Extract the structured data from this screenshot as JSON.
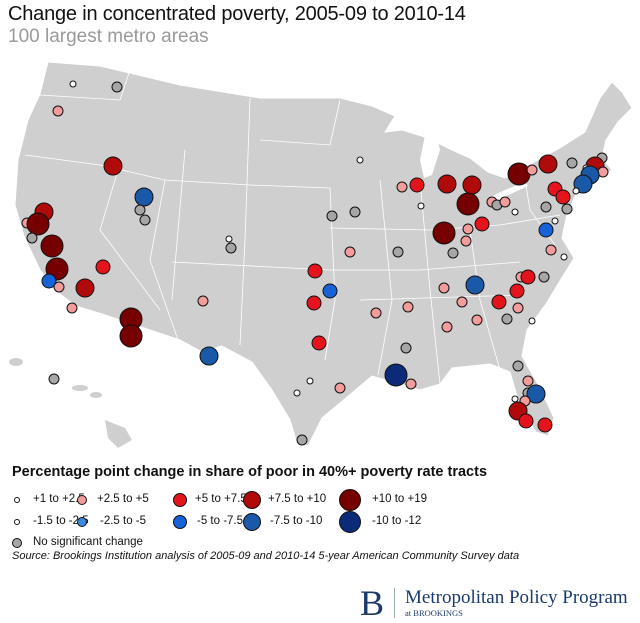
{
  "header": {
    "title": "Change in concentrated poverty, 2005-09 to 2010-14",
    "subtitle": "100 largest metro areas"
  },
  "legend": {
    "heading": "Percentage point change in share of poor in 40%+ poverty rate tracts",
    "categories": [
      {
        "key": "p1",
        "label": "+1 to +2.5",
        "color": "#ffffff"
      },
      {
        "key": "p2",
        "label": "+2.5 to +5",
        "color": "#f39c9c"
      },
      {
        "key": "p3",
        "label": "+5 to +7.5",
        "color": "#e5141c"
      },
      {
        "key": "p4",
        "label": "+7.5 to +10",
        "color": "#b00a0a"
      },
      {
        "key": "p5",
        "label": "+10 to +19",
        "color": "#760000"
      },
      {
        "key": "n1",
        "label": "-1.5 to -2.5",
        "color": "#ffffff"
      },
      {
        "key": "n2",
        "label": "-2.5 to -5",
        "color": "#3a8ae0"
      },
      {
        "key": "n3",
        "label": "-5 to -7.5",
        "color": "#1662d6"
      },
      {
        "key": "n4",
        "label": "-7.5 to -10",
        "color": "#1a58a8"
      },
      {
        "key": "n5",
        "label": "-10 to -12",
        "color": "#0b2b78"
      },
      {
        "key": "ns",
        "label": "No significant change",
        "color": "#a6a6a6"
      }
    ]
  },
  "source": "Source: Brookings Institution analysis of 2005-09 and 2010-14 5-year American Community Survey data",
  "logo": {
    "letter": "B",
    "program": "Metropolitan Policy Program",
    "org": "at BROOKINGS"
  },
  "colors": {
    "land": "#cfcfcf",
    "border": "#ffffff",
    "outline": "#111111"
  }
}
